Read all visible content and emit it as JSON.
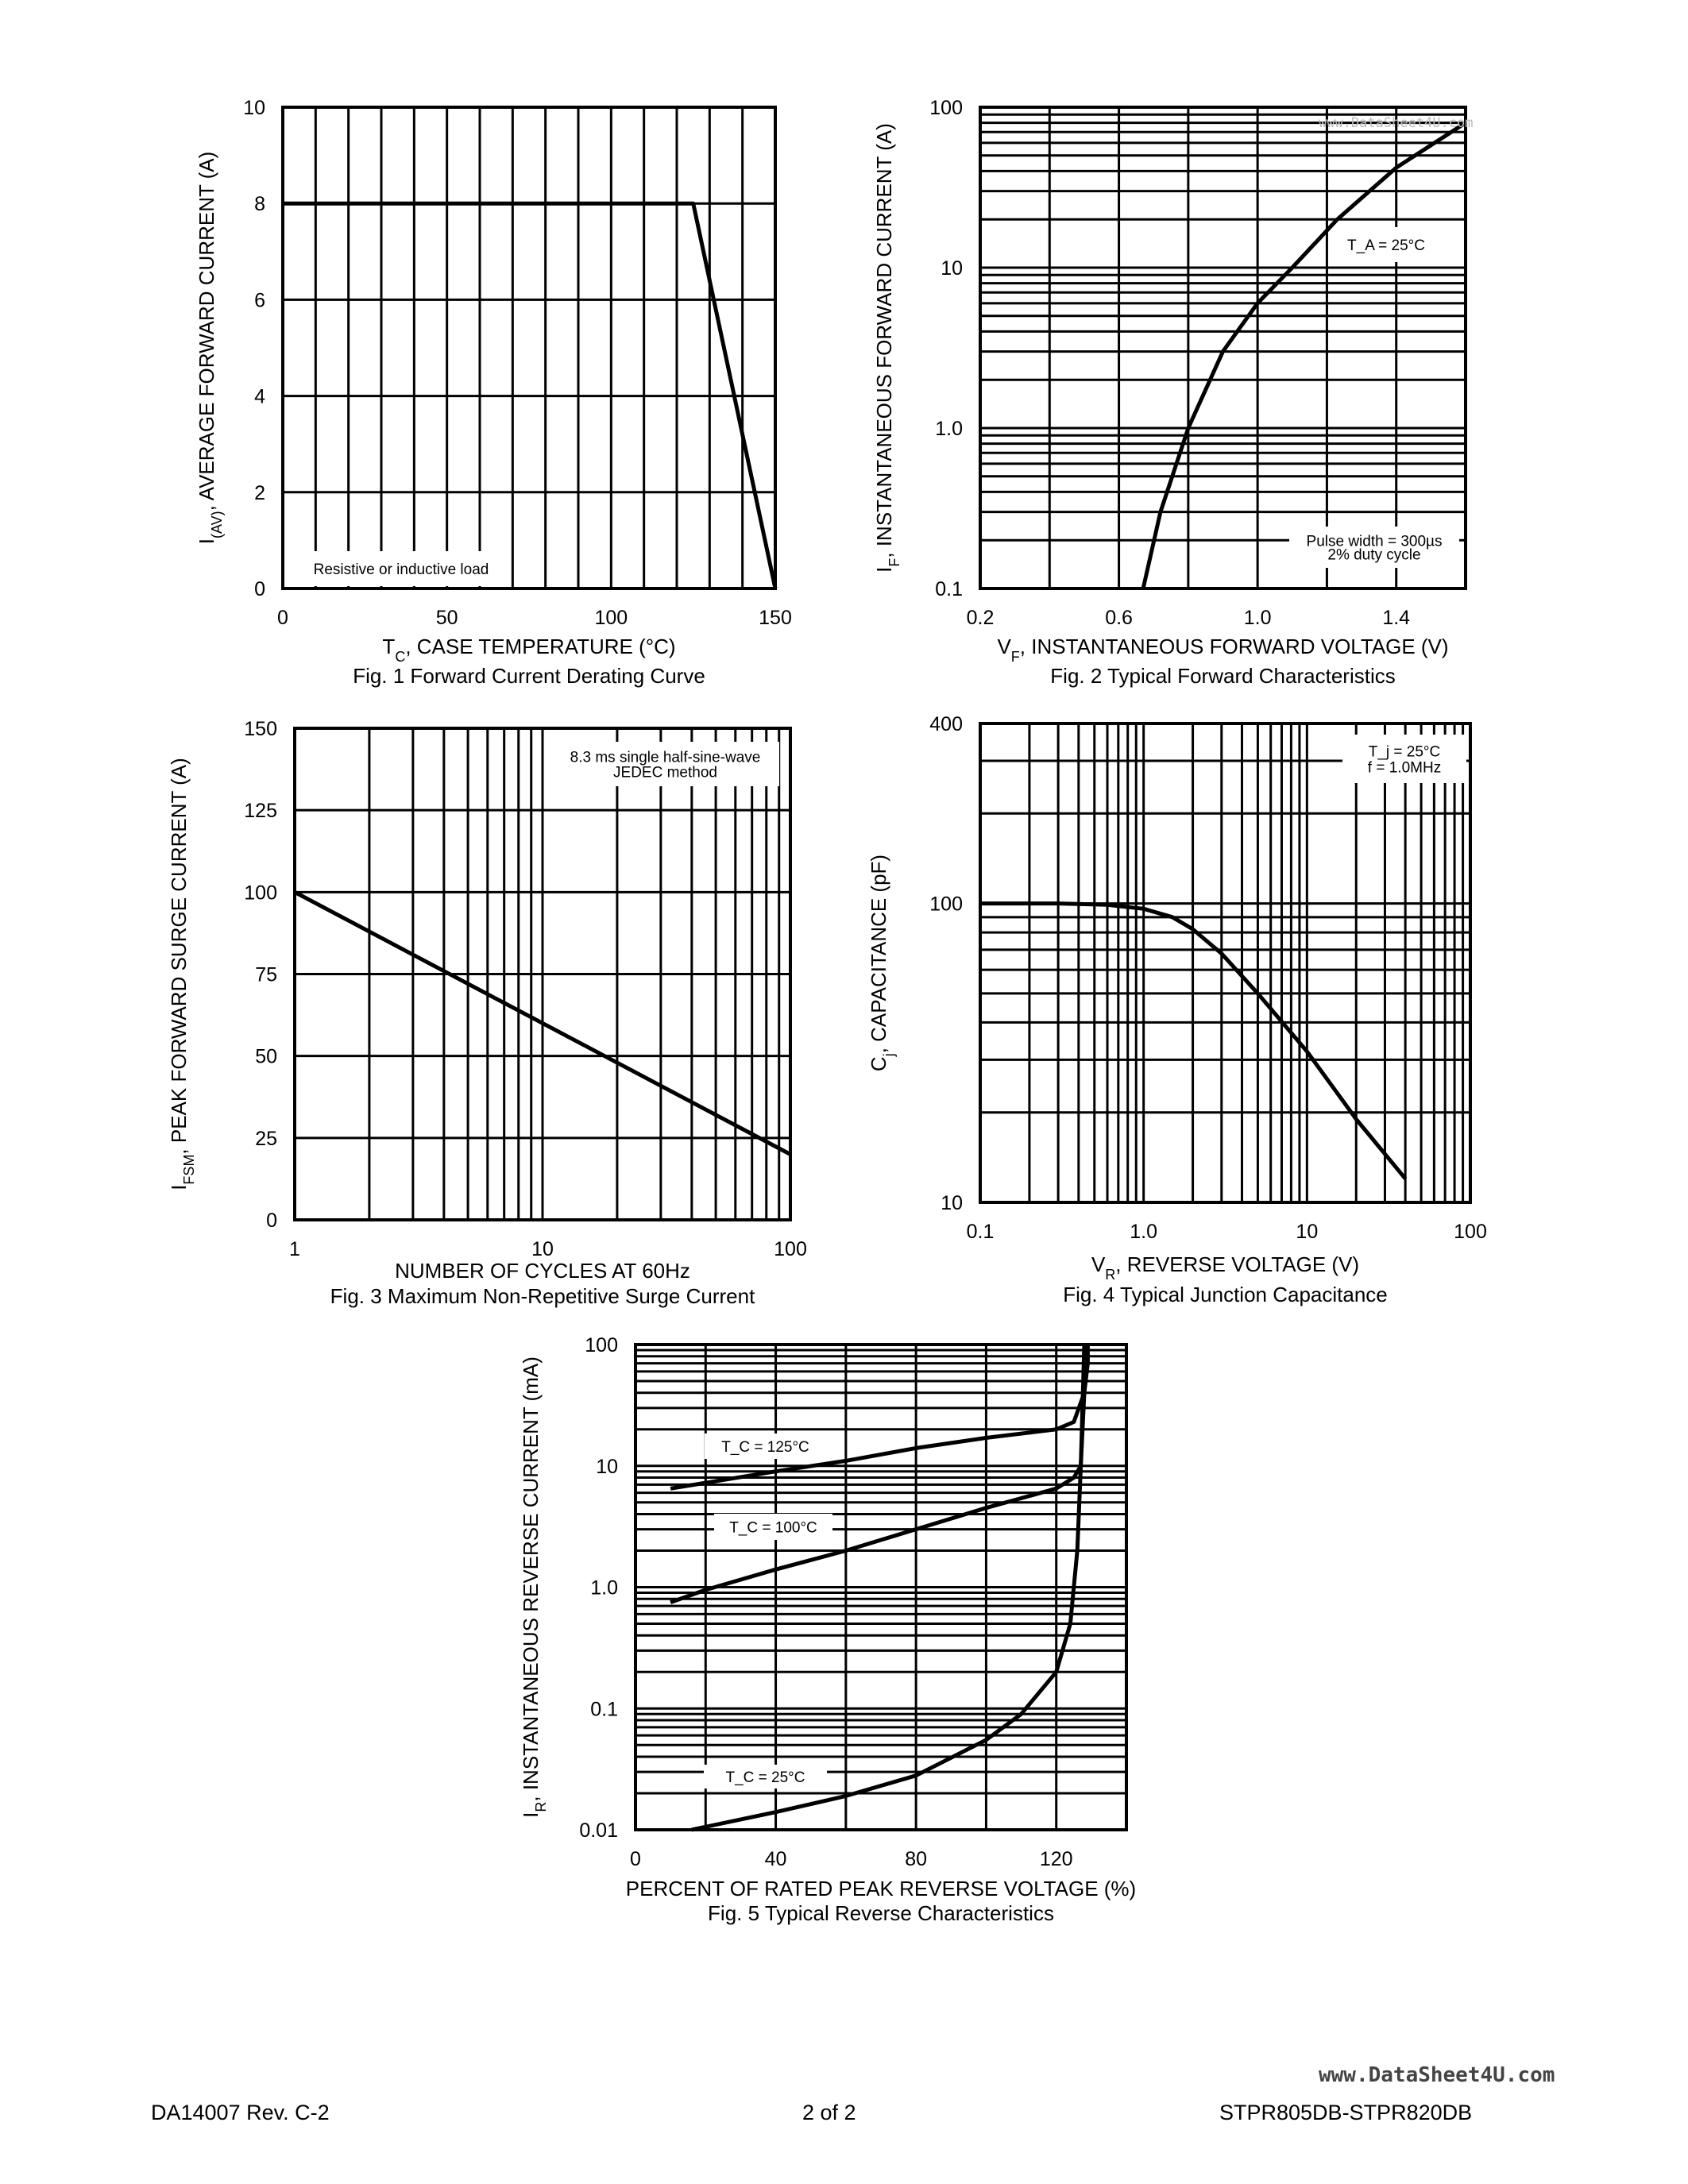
{
  "footer": {
    "doc_id": "DA14007 Rev. C-2",
    "page": "2 of 2",
    "part": "STPR805DB-STPR820DB"
  },
  "watermark": "www.DataSheet4U.com",
  "chart_data": [
    {
      "type": "line",
      "caption": "Fig. 1  Forward Current Derating Curve",
      "xlabel": {
        "base": "T",
        "sub": "C",
        "rest": ", CASE TEMPERATURE (°C)"
      },
      "ylabel": {
        "base": "I",
        "sub": "(AV)",
        "rest": ", AVERAGE FORWARD CURRENT (A)"
      },
      "xscale": "linear",
      "yscale": "linear",
      "xlim": [
        0,
        150
      ],
      "ylim": [
        0,
        10
      ],
      "xgrid_step": 10,
      "ygrid_step": 2,
      "xticks": [
        "0",
        "50",
        "100",
        "150"
      ],
      "yticks": [
        "0",
        "2",
        "4",
        "6",
        "8",
        "10"
      ],
      "grid": true,
      "annotations": [
        [
          "Resistive or inductive load"
        ]
      ],
      "series": [
        {
          "x": [
            0,
            125,
            150
          ],
          "y": [
            8,
            8,
            0
          ]
        }
      ]
    },
    {
      "type": "line",
      "caption": "Fig. 2  Typical Forward Characteristics",
      "xlabel": {
        "base": "V",
        "sub": "F",
        "rest": ", INSTANTANEOUS FORWARD VOLTAGE (V)"
      },
      "ylabel": {
        "base": "I",
        "sub": "F",
        "rest": ", INSTANTANEOUS FORWARD CURRENT (A)"
      },
      "xscale": "linear",
      "yscale": "log",
      "xlim": [
        0.2,
        1.6
      ],
      "ylim": [
        0.1,
        100
      ],
      "xgrid_step": 0.2,
      "xticks": [
        "0.2",
        "0.6",
        "1.0",
        "1.4"
      ],
      "yticks": [
        "0.1",
        "1.0",
        "10",
        "100"
      ],
      "grid": true,
      "annotations": [
        [
          "T_A = 25°C"
        ],
        [
          "Pulse width = 300µs",
          "2% duty cycle"
        ]
      ],
      "series": [
        {
          "x": [
            0.67,
            0.72,
            0.8,
            0.9,
            1.0,
            1.1,
            1.23,
            1.4,
            1.6
          ],
          "y": [
            0.1,
            0.3,
            1.0,
            3.0,
            6.0,
            10,
            20,
            42,
            80
          ]
        }
      ]
    },
    {
      "type": "line",
      "caption": "Fig. 3  Maximum Non-Repetitive Surge Current",
      "xlabel": {
        "base": "NUMBER OF CYCLES AT 60Hz",
        "sub": "",
        "rest": ""
      },
      "ylabel": {
        "base": "I",
        "sub": "FSM",
        "rest": ", PEAK FORWARD SURGE CURRENT (A)"
      },
      "xscale": "log",
      "yscale": "linear",
      "xlim": [
        1,
        100
      ],
      "ylim": [
        0,
        150
      ],
      "ygrid_step": 25,
      "xticks": [
        "1",
        "10",
        "100"
      ],
      "yticks": [
        "0",
        "25",
        "50",
        "75",
        "100",
        "125",
        "150"
      ],
      "grid": true,
      "annotations": [
        [
          "8.3 ms single half-sine-wave",
          "JEDEC method"
        ]
      ],
      "series": [
        {
          "x": [
            1,
            100
          ],
          "y": [
            100,
            20
          ]
        }
      ]
    },
    {
      "type": "line",
      "caption": "Fig. 4  Typical Junction Capacitance",
      "xlabel": {
        "base": "V",
        "sub": "R",
        "rest": ", REVERSE VOLTAGE (V)"
      },
      "ylabel": {
        "base": "C",
        "sub": "j",
        "rest": ", CAPACITANCE (pF)"
      },
      "xscale": "log",
      "yscale": "log",
      "xlim": [
        0.1,
        100
      ],
      "ylim": [
        10,
        400
      ],
      "xticks": [
        "0.1",
        "1.0",
        "10",
        "100"
      ],
      "yticks": [
        "10",
        "100",
        "400"
      ],
      "grid": true,
      "annotations": [
        [
          "T_j = 25°C",
          "f = 1.0MHz"
        ]
      ],
      "series": [
        {
          "x": [
            0.1,
            0.3,
            0.6,
            1.0,
            1.5,
            2,
            3,
            5,
            10,
            20,
            40
          ],
          "y": [
            100,
            100,
            99,
            96,
            90,
            82,
            68,
            50,
            32,
            19,
            12
          ]
        }
      ]
    },
    {
      "type": "line",
      "caption": "Fig. 5  Typical Reverse Characteristics",
      "xlabel": {
        "base": "PERCENT OF RATED PEAK REVERSE VOLTAGE (%)",
        "sub": "",
        "rest": ""
      },
      "ylabel": {
        "base": "I",
        "sub": "R",
        "rest": ", INSTANTANEOUS REVERSE CURRENT (mA)"
      },
      "xscale": "linear",
      "yscale": "log",
      "xlim": [
        0,
        140
      ],
      "ylim": [
        0.01,
        100
      ],
      "xgrid_step": 20,
      "xticks": [
        "0",
        "40",
        "80",
        "120"
      ],
      "yticks": [
        "0.01",
        "0.1",
        "1.0",
        "10",
        "100"
      ],
      "grid": true,
      "annotations": [
        [
          "T_C = 125°C"
        ],
        [
          "T_C = 100°C"
        ],
        [
          "T_C = 25°C"
        ]
      ],
      "series": [
        {
          "name": "T_C = 125°C",
          "x": [
            10,
            40,
            60,
            80,
            100,
            120,
            125,
            128,
            129,
            129
          ],
          "y": [
            6.5,
            9,
            11,
            14,
            17,
            20,
            23,
            40,
            70,
            100
          ]
        },
        {
          "name": "T_C = 100°C",
          "x": [
            10,
            20,
            40,
            60,
            80,
            100,
            120,
            125,
            127,
            128
          ],
          "y": [
            0.75,
            0.95,
            1.4,
            2,
            3,
            4.5,
            6.5,
            8,
            10,
            40
          ]
        },
        {
          "name": "T_C = 25°C",
          "x": [
            16,
            40,
            60,
            80,
            100,
            110,
            120,
            124,
            126,
            127,
            128
          ],
          "y": [
            0.01,
            0.014,
            0.019,
            0.028,
            0.055,
            0.09,
            0.2,
            0.5,
            2,
            10,
            100
          ]
        }
      ]
    }
  ]
}
